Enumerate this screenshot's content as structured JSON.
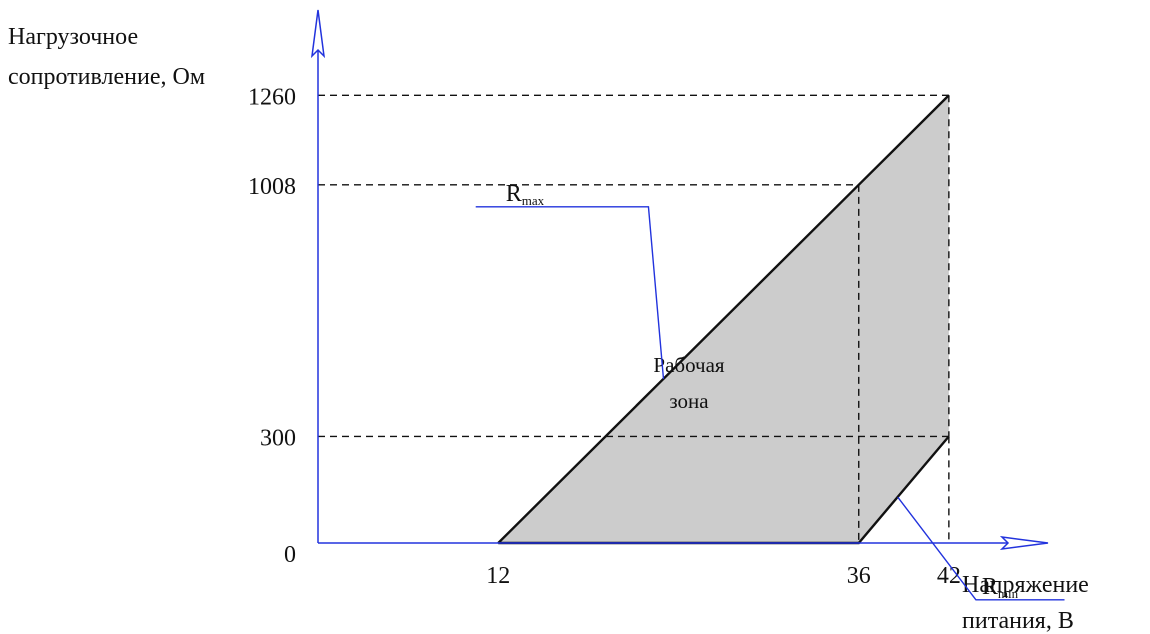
{
  "chart_data": {
    "type": "area",
    "ylabel_line1": "Нагрузочное",
    "ylabel_line2": "сопротивление, Ом",
    "xlabel_line1": "Напряжение",
    "xlabel_line2": "питания, В",
    "x_ticks": [
      "12",
      "36",
      "42"
    ],
    "y_ticks": [
      "1260",
      "1008",
      "300"
    ],
    "origin_label": "0",
    "xlim": [
      0,
      48.6
    ],
    "ylim": [
      0,
      1500
    ],
    "region": {
      "label_line1": "Рабочая",
      "label_line2": "зона",
      "fill": "#cccccc"
    },
    "series": [
      {
        "name": "R",
        "subscript": "max",
        "points": [
          [
            12,
            0
          ],
          [
            36,
            1008
          ],
          [
            42,
            1260
          ]
        ]
      },
      {
        "name": "R",
        "subscript": "min",
        "points": [
          [
            12,
            0
          ],
          [
            36,
            0
          ],
          [
            42,
            300
          ]
        ]
      }
    ]
  },
  "colors": {
    "axis": "#2233dd",
    "line": "#111111",
    "fill": "#cccccc"
  }
}
